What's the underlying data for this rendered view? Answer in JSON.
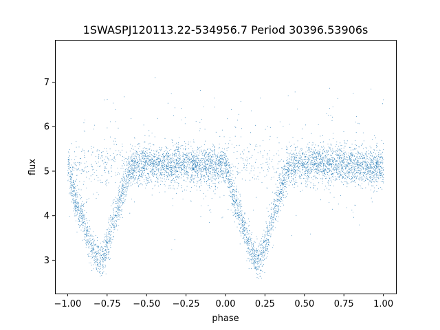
{
  "chart_data": {
    "type": "scatter",
    "title": "1SWASPJ120113.22-534956.7 Period 30396.53906s",
    "xlabel": "phase",
    "ylabel": "flux",
    "xlim": [
      -1.08,
      1.08
    ],
    "ylim": [
      2.25,
      7.95
    ],
    "xticks": [
      -1.0,
      -0.75,
      -0.5,
      -0.25,
      0.0,
      0.25,
      0.5,
      0.75,
      1.0
    ],
    "xtick_labels": [
      "−1.00",
      "−0.75",
      "−0.50",
      "−0.25",
      "0.00",
      "0.25",
      "0.50",
      "0.75",
      "1.00"
    ],
    "yticks": [
      3,
      4,
      5,
      6,
      7
    ],
    "ytick_labels": [
      "3",
      "4",
      "5",
      "6",
      "7"
    ],
    "grid": false,
    "marker_color": "#1f77b4",
    "series": [
      {
        "description_of_curve": "folded light curve: baseline ~5.15, eclipses at phase -0.80 and 0.20",
        "points_estimated": {
          "phase": [
            -1.0,
            -0.95,
            -0.9,
            -0.85,
            -0.82,
            -0.8,
            -0.78,
            -0.75,
            -0.7,
            -0.65,
            -0.6,
            -0.5,
            -0.25,
            0.0,
            0.05,
            0.1,
            0.15,
            0.18,
            0.2,
            0.22,
            0.25,
            0.3,
            0.35,
            0.4,
            0.5,
            0.75,
            1.0
          ],
          "flux": [
            5.1,
            4.3,
            3.9,
            3.3,
            3.05,
            3.0,
            3.05,
            3.4,
            4.0,
            4.6,
            5.1,
            5.15,
            5.15,
            5.1,
            4.4,
            3.9,
            3.3,
            3.05,
            3.0,
            3.05,
            3.4,
            4.0,
            4.6,
            5.1,
            5.15,
            5.15,
            5.1
          ]
        }
      }
    ]
  }
}
